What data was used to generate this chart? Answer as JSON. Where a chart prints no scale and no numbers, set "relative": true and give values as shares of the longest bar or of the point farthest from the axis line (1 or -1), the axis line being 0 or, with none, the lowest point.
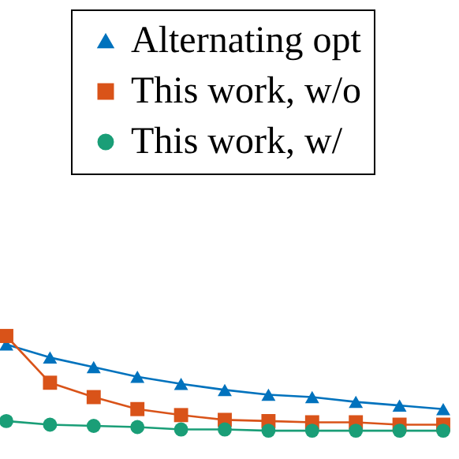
{
  "chart_data": {
    "type": "line",
    "relative": true,
    "legend": "top right",
    "categories": [
      null,
      null,
      null,
      null,
      null,
      null,
      null,
      null,
      null,
      null,
      null
    ],
    "series": [
      {
        "name": "Alternating opt",
        "color": "#0072bd",
        "marker": "triangle",
        "values": [
          0.93,
          0.82,
          0.74,
          0.66,
          0.6,
          0.55,
          0.51,
          0.49,
          0.45,
          0.42,
          0.39
        ]
      },
      {
        "name": "This work, w/o",
        "color": "#d95319",
        "marker": "square",
        "values": [
          1,
          0.61,
          0.49,
          0.39,
          0.34,
          0.3,
          0.29,
          0.28,
          0.28,
          0.26,
          0.26
        ]
      },
      {
        "name": "This work, w/",
        "color": "#1a9e77",
        "marker": "circle",
        "values": [
          0.29,
          0.26,
          0.25,
          0.24,
          0.22,
          0.22,
          0.21,
          0.21,
          0.21,
          0.21,
          0.21
        ]
      }
    ]
  }
}
